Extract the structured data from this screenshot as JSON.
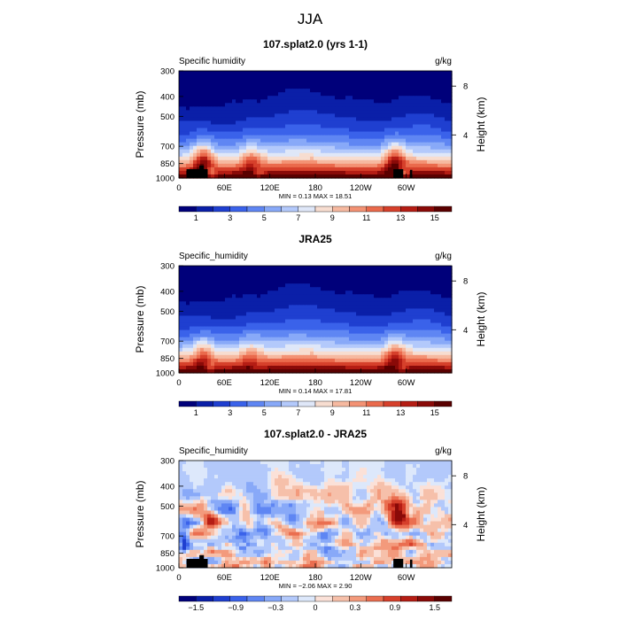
{
  "page_title": "JJA",
  "colors": {
    "model_scale": [
      "#00007a",
      "#0a1fa8",
      "#1f3fd0",
      "#3a62ea",
      "#5f86f3",
      "#88a9f8",
      "#b3c9fb",
      "#dfe7f8",
      "#f7ddd0",
      "#f6b9a0",
      "#f39274",
      "#ea6a4c",
      "#d6402b",
      "#b51d14",
      "#8a0a08",
      "#5a0000"
    ],
    "diff_scale": [
      "#00007a",
      "#0a1fa8",
      "#1f3fd0",
      "#3a62ea",
      "#5f86f3",
      "#88a9f8",
      "#b3c9fb",
      "#dde8fb",
      "#fbe1d8",
      "#f6c0aa",
      "#f39a7c",
      "#ea6e50",
      "#d6402b",
      "#b51d14",
      "#8a0a08",
      "#5a0000"
    ],
    "terrain": "#000000"
  },
  "chart_data": [
    {
      "type": "heatmap",
      "title": "107.splat2.0 (yrs 1-1)",
      "left_label": "Specific humidity",
      "units": "g/kg",
      "ylabel": "Pressure (mb)",
      "ylabel_right": "Height (km)",
      "x_ticks": [
        "0",
        "60E",
        "120E",
        "180",
        "120W",
        "60W"
      ],
      "x_tick_values": [
        0,
        60,
        120,
        180,
        240,
        300
      ],
      "xlim": [
        0,
        360
      ],
      "y_ticks": [
        "300",
        "400",
        "500",
        "700",
        "850",
        "1000"
      ],
      "y_tick_values": [
        300,
        400,
        500,
        700,
        850,
        1000
      ],
      "ylim": [
        300,
        1000
      ],
      "right_ticks": [
        "8",
        "4"
      ],
      "right_tick_pressures": [
        356,
        616
      ],
      "stats": "MIN =    0.13   MAX =   18.51",
      "colorbar_labels": [
        "1",
        "3",
        "5",
        "7",
        "9",
        "11",
        "13",
        "15"
      ],
      "colorbar_levels": [
        0,
        1,
        2,
        3,
        4,
        5,
        6,
        7,
        8,
        9,
        10,
        11,
        12,
        13,
        14,
        15,
        16
      ],
      "kind": "model",
      "features": [
        {
          "lon": 32,
          "amp": 1.4
        },
        {
          "lon": 95,
          "amp": 0.8
        },
        {
          "lon": 285,
          "amp": 1.3
        }
      ],
      "terrain": [
        {
          "lon_start": 10,
          "lon_end": 38,
          "p_top": 905
        },
        {
          "lon_start": 27,
          "lon_end": 33,
          "p_top": 868
        },
        {
          "lon_start": 283,
          "lon_end": 296,
          "p_top": 905
        },
        {
          "lon_start": 305,
          "lon_end": 308,
          "p_top": 912
        }
      ]
    },
    {
      "type": "heatmap",
      "title": "JRA25",
      "left_label": "Specific_humidity",
      "units": "g/kg",
      "ylabel": "Pressure (mb)",
      "ylabel_right": "Height (km)",
      "x_ticks": [
        "0",
        "60E",
        "120E",
        "180",
        "120W",
        "60W"
      ],
      "x_tick_values": [
        0,
        60,
        120,
        180,
        240,
        300
      ],
      "xlim": [
        0,
        360
      ],
      "y_ticks": [
        "300",
        "400",
        "500",
        "700",
        "850",
        "1000"
      ],
      "y_tick_values": [
        300,
        400,
        500,
        700,
        850,
        1000
      ],
      "ylim": [
        300,
        1000
      ],
      "right_ticks": [
        "8",
        "4"
      ],
      "right_tick_pressures": [
        356,
        616
      ],
      "stats": "MIN =    0.14   MAX =   17.81",
      "colorbar_labels": [
        "1",
        "3",
        "5",
        "7",
        "9",
        "11",
        "13",
        "15"
      ],
      "colorbar_levels": [
        0,
        1,
        2,
        3,
        4,
        5,
        6,
        7,
        8,
        9,
        10,
        11,
        12,
        13,
        14,
        15,
        16
      ],
      "kind": "model",
      "features": [
        {
          "lon": 32,
          "amp": 0.9
        },
        {
          "lon": 95,
          "amp": 0.6
        },
        {
          "lon": 285,
          "amp": 1.0
        }
      ],
      "terrain": []
    },
    {
      "type": "heatmap",
      "title": "107.splat2.0 - JRA25",
      "left_label": "Specific_humidity",
      "units": "g/kg",
      "ylabel": "Pressure (mb)",
      "ylabel_right": "Height (km)",
      "x_ticks": [
        "0",
        "60E",
        "120E",
        "180",
        "120W",
        "60W"
      ],
      "x_tick_values": [
        0,
        60,
        120,
        180,
        240,
        300
      ],
      "xlim": [
        0,
        360
      ],
      "y_ticks": [
        "300",
        "400",
        "500",
        "700",
        "850",
        "1000"
      ],
      "y_tick_values": [
        300,
        400,
        500,
        700,
        850,
        1000
      ],
      "ylim": [
        300,
        1000
      ],
      "right_ticks": [
        "8",
        "4"
      ],
      "right_tick_pressures": [
        356,
        616
      ],
      "stats": "MIN =  −2.06   MAX =    2.90",
      "colorbar_labels": [
        "−1.5",
        "−0.9",
        "−0.3",
        "0",
        "0.3",
        "0.9",
        "1.5"
      ],
      "colorbar_levels": [
        -2.1,
        -1.8,
        -1.5,
        -1.2,
        -0.9,
        -0.6,
        -0.3,
        0,
        0.15,
        0.3,
        0.6,
        0.9,
        1.2,
        1.5,
        1.8,
        2.1,
        2.4
      ],
      "kind": "diff",
      "features": [],
      "terrain": [
        {
          "lon_start": 10,
          "lon_end": 38,
          "p_top": 905
        },
        {
          "lon_start": 27,
          "lon_end": 33,
          "p_top": 868
        },
        {
          "lon_start": 283,
          "lon_end": 296,
          "p_top": 905
        },
        {
          "lon_start": 305,
          "lon_end": 308,
          "p_top": 912
        }
      ]
    }
  ]
}
